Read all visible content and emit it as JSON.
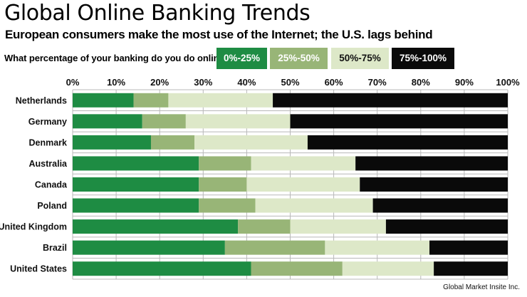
{
  "header": {
    "title": "Global Online Banking Trends",
    "subtitle": "European consumers make the most use of the Internet; the U.S. lags behind",
    "question": "What percentage of your banking do you do online?"
  },
  "legend": [
    {
      "label": "0%-25%",
      "color": "#1e8c43",
      "text_color": "#ffffff"
    },
    {
      "label": "25%-50%",
      "color": "#98b577",
      "text_color": "#ffffff"
    },
    {
      "label": "50%-75%",
      "color": "#dde8c8",
      "text_color": "#111111"
    },
    {
      "label": "75%-100%",
      "color": "#0a0a0a",
      "text_color": "#ffffff"
    }
  ],
  "source": "Global Market Insite Inc.",
  "chart_data": {
    "type": "bar",
    "orientation": "horizontal",
    "stacked": true,
    "title": "Global Online Banking Trends",
    "subtitle": "European consumers make the most use of the Internet; the U.S. lags behind",
    "xlim": [
      0,
      100
    ],
    "x_ticks": [
      "0%",
      "10%",
      "20%",
      "30%",
      "40%",
      "50%",
      "60%",
      "70%",
      "80%",
      "90%",
      "100%"
    ],
    "grid": true,
    "categories": [
      "Netherlands",
      "Germany",
      "Denmark",
      "Australia",
      "Canada",
      "Poland",
      "United Kingdom",
      "Brazil",
      "United States"
    ],
    "series": [
      {
        "name": "0%-25%",
        "color": "#1e8c43",
        "values": [
          14,
          16,
          18,
          29,
          29,
          29,
          38,
          35,
          41
        ]
      },
      {
        "name": "25%-50%",
        "color": "#98b577",
        "values": [
          8,
          10,
          10,
          12,
          11,
          13,
          12,
          23,
          21
        ]
      },
      {
        "name": "50%-75%",
        "color": "#dde8c8",
        "values": [
          24,
          24,
          26,
          24,
          26,
          27,
          22,
          24,
          21
        ]
      },
      {
        "name": "75%-100%",
        "color": "#0a0a0a",
        "values": [
          54,
          50,
          46,
          35,
          34,
          31,
          28,
          18,
          17
        ]
      }
    ]
  }
}
